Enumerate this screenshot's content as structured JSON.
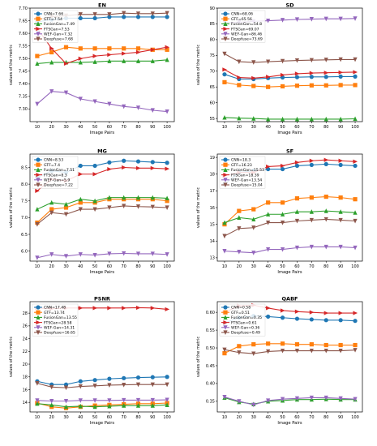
{
  "chart_data": [
    {
      "type": "line",
      "title": "EN",
      "xlabel": "Image Pairs",
      "ylabel": "values of the metric",
      "x": [
        10,
        20,
        30,
        40,
        50,
        60,
        70,
        80,
        90,
        100
      ],
      "xticks": [
        "10",
        "20",
        "30",
        "40",
        "50",
        "60",
        "70",
        "80",
        "90",
        "100"
      ],
      "ylim": [
        7.25,
        7.7
      ],
      "yticks": [
        7.3,
        7.35,
        7.4,
        7.45,
        7.5,
        7.55,
        7.6,
        7.65,
        7.7
      ],
      "ytick_labels": [
        "7.30",
        "7.35",
        "7.40",
        "7.45",
        "7.50",
        "7.55",
        "7.60",
        "7.65",
        "7.70"
      ],
      "grid": false,
      "legend_position": "top-left",
      "series": [
        {
          "name": "CNN=7.66",
          "color": "#1f77b4",
          "marker": "circle",
          "values": [
            7.645,
            7.655,
            7.66,
            7.66,
            7.66,
            7.665,
            7.665,
            7.665,
            7.665,
            7.665
          ]
        },
        {
          "name": "GTF=7.54",
          "color": "#ff7f0e",
          "marker": "square",
          "values": [
            7.51,
            7.525,
            7.545,
            7.54,
            7.54,
            7.54,
            7.54,
            7.54,
            7.535,
            7.535
          ]
        },
        {
          "name": "FusionGan=7.49",
          "color": "#2ca02c",
          "marker": "triangle-up",
          "values": [
            7.48,
            7.485,
            7.485,
            7.485,
            7.487,
            7.49,
            7.49,
            7.49,
            7.49,
            7.495
          ]
        },
        {
          "name": "FTSGan=7.53",
          "color": "#d62728",
          "marker": "triangle-right",
          "values": [
            7.62,
            7.54,
            7.48,
            7.5,
            7.51,
            7.515,
            7.52,
            7.525,
            7.535,
            7.545
          ]
        },
        {
          "name": "WEF-Gan=7.32",
          "color": "#9467bd",
          "marker": "triangle-down",
          "values": [
            7.32,
            7.37,
            7.365,
            7.34,
            7.33,
            7.32,
            7.31,
            7.305,
            7.295,
            7.29
          ]
        },
        {
          "name": "Deepfuse=7.68",
          "color": "#8c564b",
          "marker": "triangle-down",
          "values": [
            7.655,
            7.665,
            7.67,
            7.675,
            7.675,
            7.675,
            7.68,
            7.678,
            7.678,
            7.68
          ]
        }
      ]
    },
    {
      "type": "line",
      "title": "SD",
      "xlabel": "Image Pairs",
      "ylabel": "values of the metric",
      "x": [
        10,
        20,
        30,
        40,
        50,
        60,
        70,
        80,
        90,
        100
      ],
      "xticks": [
        "10",
        "20",
        "30",
        "40",
        "50",
        "60",
        "70",
        "80",
        "90",
        "100"
      ],
      "ylim": [
        54,
        90
      ],
      "yticks": [
        55,
        60,
        65,
        70,
        75,
        80,
        85,
        90
      ],
      "ytick_labels": [
        "55",
        "60",
        "65",
        "70",
        "75",
        "80",
        "85",
        "90"
      ],
      "grid": false,
      "legend_position": "top-left",
      "series": [
        {
          "name": "CNN=68.06",
          "color": "#1f77b4",
          "marker": "circle",
          "values": [
            69.0,
            67.5,
            67.5,
            67.8,
            68.0,
            68.1,
            68.2,
            68.2,
            68.3,
            68.3
          ]
        },
        {
          "name": "GTF=65.56",
          "color": "#ff7f0e",
          "marker": "square",
          "values": [
            66.5,
            65.6,
            65.3,
            65.0,
            65.2,
            65.4,
            65.5,
            65.5,
            65.6,
            65.6
          ]
        },
        {
          "name": "FusionGan=54.8",
          "color": "#2ca02c",
          "marker": "triangle-up",
          "values": [
            55.3,
            55.1,
            55.0,
            54.8,
            54.8,
            54.8,
            54.8,
            54.8,
            54.8,
            54.9
          ]
        },
        {
          "name": "FTSGan=69.07",
          "color": "#d62728",
          "marker": "triangle-right",
          "values": [
            70.5,
            68.0,
            67.8,
            68.2,
            68.8,
            69.2,
            69.4,
            69.5,
            69.6,
            69.7
          ]
        },
        {
          "name": "WEF-Gan=86.46",
          "color": "#9467bd",
          "marker": "triangle-down",
          "values": [
            85.5,
            85.5,
            85.8,
            86.0,
            86.2,
            86.4,
            86.5,
            86.6,
            86.6,
            86.7
          ]
        },
        {
          "name": "Deepfuse=73.69",
          "color": "#8c564b",
          "marker": "triangle-down",
          "values": [
            75.5,
            73.0,
            72.8,
            73.0,
            73.2,
            73.4,
            73.5,
            73.6,
            73.7,
            73.7
          ]
        }
      ]
    },
    {
      "type": "line",
      "title": "MG",
      "xlabel": "Image Pairs",
      "ylabel": "values of the metric",
      "x": [
        10,
        20,
        30,
        40,
        50,
        60,
        70,
        80,
        90,
        100
      ],
      "xticks": [
        "10",
        "20",
        "30",
        "40",
        "50",
        "60",
        "70",
        "80",
        "90",
        "100"
      ],
      "ylim": [
        5.7,
        8.9
      ],
      "yticks": [
        6.0,
        6.5,
        7.0,
        7.5,
        8.0,
        8.5
      ],
      "ytick_labels": [
        "6.0",
        "6.5",
        "7.0",
        "7.5",
        "8.0",
        "8.5"
      ],
      "grid": false,
      "legend_position": "top-left",
      "series": [
        {
          "name": "CNN=8.53",
          "color": "#1f77b4",
          "marker": "circle",
          "values": [
            8.2,
            8.4,
            8.35,
            8.55,
            8.55,
            8.65,
            8.7,
            8.68,
            8.66,
            8.64
          ]
        },
        {
          "name": "GTF=7.4",
          "color": "#ff7f0e",
          "marker": "square",
          "values": [
            6.85,
            7.25,
            7.3,
            7.45,
            7.45,
            7.55,
            7.55,
            7.55,
            7.55,
            7.5
          ]
        },
        {
          "name": "FusionGan=7.51",
          "color": "#2ca02c",
          "marker": "triangle-up",
          "values": [
            7.25,
            7.45,
            7.4,
            7.55,
            7.5,
            7.6,
            7.6,
            7.6,
            7.6,
            7.58
          ]
        },
        {
          "name": "FTSGan=8.3",
          "color": "#d62728",
          "marker": "triangle-right",
          "values": [
            7.8,
            8.15,
            8.1,
            8.3,
            8.3,
            8.45,
            8.5,
            8.48,
            8.48,
            8.46
          ]
        },
        {
          "name": "WEF-Gan=5.9",
          "color": "#9467bd",
          "marker": "triangle-down",
          "values": [
            5.8,
            5.9,
            5.85,
            5.9,
            5.88,
            5.92,
            5.93,
            5.92,
            5.92,
            5.9
          ]
        },
        {
          "name": "Deepfuse=7.22",
          "color": "#8c564b",
          "marker": "triangle-down",
          "values": [
            6.8,
            7.15,
            7.1,
            7.25,
            7.25,
            7.3,
            7.35,
            7.33,
            7.32,
            7.3
          ]
        }
      ]
    },
    {
      "type": "line",
      "title": "SF",
      "xlabel": "Image Pairs",
      "ylabel": "values of the metric",
      "x": [
        10,
        20,
        30,
        40,
        50,
        60,
        70,
        80,
        90,
        100
      ],
      "xticks": [
        "10",
        "20",
        "30",
        "40",
        "50",
        "60",
        "70",
        "80",
        "90",
        "100"
      ],
      "ylim": [
        12.8,
        19.2
      ],
      "yticks": [
        13,
        14,
        15,
        16,
        17,
        18,
        19
      ],
      "ytick_labels": [
        "13",
        "14",
        "15",
        "16",
        "17",
        "18",
        "19"
      ],
      "grid": false,
      "legend_position": "top-left",
      "series": [
        {
          "name": "CNN=18.3",
          "color": "#1f77b4",
          "marker": "circle",
          "values": [
            17.4,
            18.1,
            18.2,
            18.3,
            18.3,
            18.5,
            18.55,
            18.6,
            18.55,
            18.5
          ]
        },
        {
          "name": "GTF=16.23",
          "color": "#ff7f0e",
          "marker": "square",
          "values": [
            15.0,
            15.8,
            15.9,
            16.3,
            16.3,
            16.55,
            16.6,
            16.65,
            16.6,
            16.5
          ]
        },
        {
          "name": "FusionGan=15.53",
          "color": "#2ca02c",
          "marker": "triangle-up",
          "values": [
            15.1,
            15.4,
            15.3,
            15.6,
            15.6,
            15.75,
            15.75,
            15.8,
            15.75,
            15.7
          ]
        },
        {
          "name": "FTSGan=18.39",
          "color": "#d62728",
          "marker": "triangle-right",
          "values": [
            17.9,
            18.1,
            18.1,
            18.45,
            18.5,
            18.7,
            18.8,
            18.85,
            18.8,
            18.75
          ]
        },
        {
          "name": "WEF-Gan=13.54",
          "color": "#9467bd",
          "marker": "triangle-down",
          "values": [
            13.4,
            13.35,
            13.3,
            13.5,
            13.5,
            13.6,
            13.65,
            13.65,
            13.65,
            13.6
          ]
        },
        {
          "name": "Deepfuse=15.04",
          "color": "#8c564b",
          "marker": "triangle-down",
          "values": [
            14.3,
            14.75,
            14.8,
            15.1,
            15.1,
            15.2,
            15.25,
            15.3,
            15.25,
            15.2
          ]
        }
      ]
    },
    {
      "type": "line",
      "title": "PSNR",
      "xlabel": "Image Pairs",
      "ylabel": "values of the metric",
      "x": [
        10,
        20,
        30,
        40,
        50,
        60,
        70,
        80,
        90,
        100
      ],
      "xticks": [
        "10",
        "20",
        "30",
        "40",
        "50",
        "60",
        "70",
        "80",
        "90",
        "100"
      ],
      "ylim": [
        12.5,
        29.8
      ],
      "yticks": [
        14,
        16,
        18,
        20,
        22,
        24,
        26,
        28
      ],
      "ytick_labels": [
        "14",
        "16",
        "18",
        "20",
        "22",
        "24",
        "26",
        "28"
      ],
      "grid": false,
      "legend_position": "top-left",
      "series": [
        {
          "name": "CNN=17.48",
          "color": "#1f77b4",
          "marker": "circle",
          "values": [
            17.3,
            16.8,
            16.8,
            17.3,
            17.5,
            17.7,
            17.8,
            17.9,
            17.95,
            18.0
          ]
        },
        {
          "name": "GTF=13.74",
          "color": "#ff7f0e",
          "marker": "square",
          "values": [
            13.9,
            13.3,
            13.1,
            13.3,
            13.5,
            13.6,
            13.7,
            13.8,
            13.8,
            13.9
          ]
        },
        {
          "name": "FusionGan=13.55",
          "color": "#2ca02c",
          "marker": "triangle-up",
          "values": [
            13.8,
            13.6,
            13.3,
            13.4,
            13.3,
            13.4,
            13.5,
            13.5,
            13.5,
            13.6
          ]
        },
        {
          "name": "FTSGan=28.58",
          "color": "#d62728",
          "marker": "triangle-right",
          "values": [
            28.8,
            28.7,
            28.8,
            28.8,
            28.8,
            28.8,
            28.8,
            28.85,
            28.8,
            28.6
          ]
        },
        {
          "name": "WEF-Gan=14.31",
          "color": "#9467bd",
          "marker": "triangle-down",
          "values": [
            14.3,
            14.2,
            14.2,
            14.3,
            14.3,
            14.3,
            14.35,
            14.35,
            14.35,
            14.4
          ]
        },
        {
          "name": "Deepfuse=16.65",
          "color": "#8c564b",
          "marker": "triangle-down",
          "values": [
            17.0,
            16.4,
            16.3,
            16.5,
            16.6,
            16.7,
            16.75,
            16.8,
            16.8,
            16.8
          ]
        }
      ]
    },
    {
      "type": "line",
      "title": "QABF",
      "xlabel": "Image Pairs",
      "ylabel": "values of the metric",
      "x": [
        10,
        20,
        30,
        40,
        50,
        60,
        70,
        80,
        90,
        100
      ],
      "xticks": [
        "10",
        "20",
        "30",
        "40",
        "50",
        "60",
        "70",
        "80",
        "90",
        "100"
      ],
      "ylim": [
        0.32,
        0.63
      ],
      "yticks": [
        0.35,
        0.4,
        0.45,
        0.5,
        0.55,
        0.6
      ],
      "ytick_labels": [
        "0.35",
        "0.40",
        "0.45",
        "0.50",
        "0.55",
        "0.60"
      ],
      "grid": false,
      "legend_position": "top-left",
      "series": [
        {
          "name": "CNN=0.58",
          "color": "#1f77b4",
          "marker": "circle",
          "values": [
            0.57,
            0.585,
            0.59,
            0.588,
            0.585,
            0.582,
            0.58,
            0.578,
            0.578,
            0.576
          ]
        },
        {
          "name": "GTF=0.51",
          "color": "#ff7f0e",
          "marker": "square",
          "values": [
            0.485,
            0.505,
            0.51,
            0.512,
            0.512,
            0.51,
            0.51,
            0.508,
            0.508,
            0.508
          ]
        },
        {
          "name": "FusionGan=0.35",
          "color": "#2ca02c",
          "marker": "triangle-up",
          "values": [
            0.36,
            0.348,
            0.342,
            0.35,
            0.352,
            0.355,
            0.355,
            0.356,
            0.355,
            0.355
          ]
        },
        {
          "name": "FTSGan=0.61",
          "color": "#d62728",
          "marker": "triangle-right",
          "values": [
            0.6,
            0.618,
            0.62,
            0.612,
            0.605,
            0.602,
            0.6,
            0.598,
            0.598,
            0.598
          ]
        },
        {
          "name": "WEF-Gan=0.36",
          "color": "#9467bd",
          "marker": "triangle-down",
          "values": [
            0.362,
            0.35,
            0.34,
            0.352,
            0.356,
            0.358,
            0.36,
            0.36,
            0.358,
            0.356
          ]
        },
        {
          "name": "Deepfuse=0.49",
          "color": "#8c564b",
          "marker": "triangle-down",
          "values": [
            0.495,
            0.487,
            0.484,
            0.49,
            0.492,
            0.492,
            0.492,
            0.492,
            0.492,
            0.494
          ]
        }
      ]
    }
  ]
}
